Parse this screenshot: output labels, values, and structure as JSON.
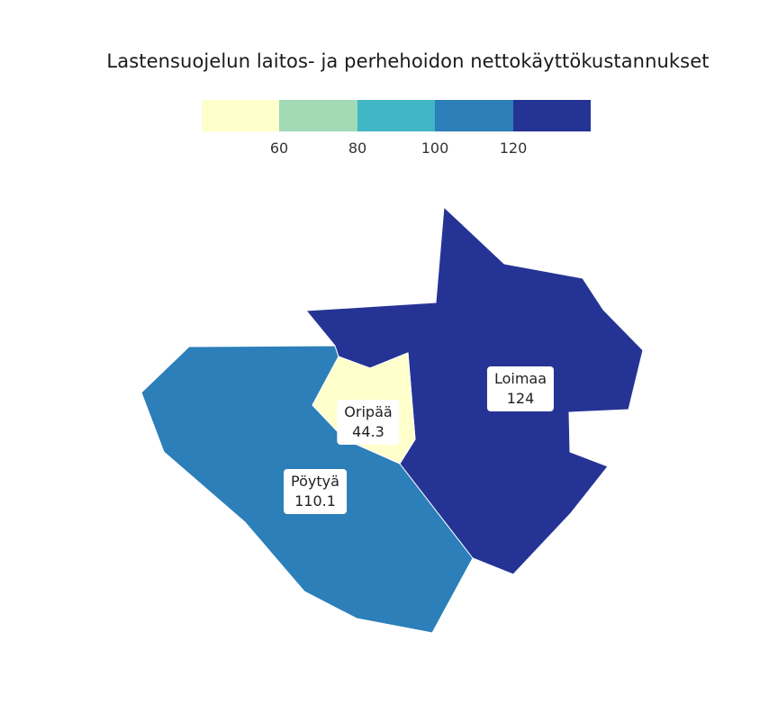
{
  "title": "Lastensuojelun laitos- ja perhehoidon nettokäyttökustannukset",
  "legend": {
    "colors": [
      "#ffffcc",
      "#a1dab4",
      "#41b6c4",
      "#2c7fb8",
      "#253494"
    ],
    "ticks": [
      "60",
      "80",
      "100",
      "120"
    ]
  },
  "regions": [
    {
      "name": "Pöytyä",
      "value": "110.1",
      "color": "#2c7fb8"
    },
    {
      "name": "Loimaa",
      "value": "124",
      "color": "#253494"
    },
    {
      "name": "Oripää",
      "value": "44.3",
      "color": "#ffffcc"
    }
  ]
}
